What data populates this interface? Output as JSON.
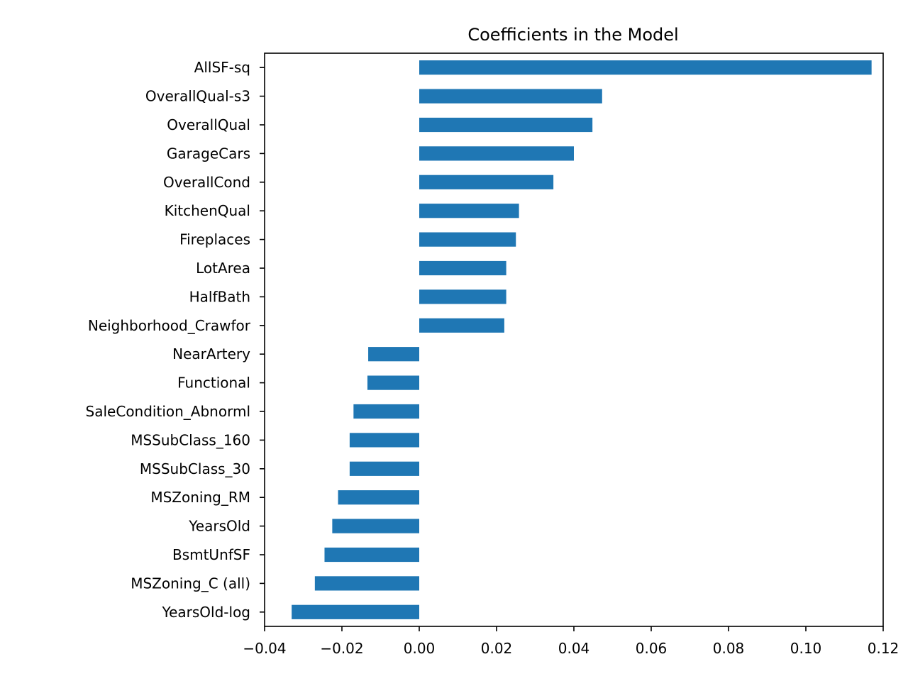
{
  "chart_data": {
    "type": "bar",
    "orientation": "horizontal",
    "title": "Coefficients in the Model",
    "xlabel": "",
    "ylabel": "",
    "xlim": [
      -0.04,
      0.12
    ],
    "xticks": [
      -0.04,
      -0.02,
      0.0,
      0.02,
      0.04,
      0.06,
      0.08,
      0.1,
      0.12
    ],
    "xtick_labels": [
      "−0.04",
      "−0.02",
      "0.00",
      "0.02",
      "0.04",
      "0.06",
      "0.08",
      "0.10",
      "0.12"
    ],
    "grid": false,
    "bar_color": "#1f77b4",
    "categories": [
      "AllSF-sq",
      "OverallQual-s3",
      "OverallQual",
      "GarageCars",
      "OverallCond",
      "KitchenQual",
      "Fireplaces",
      "LotArea",
      "HalfBath",
      "Neighborhood_Crawfor",
      "NearArtery",
      "Functional",
      "SaleCondition_Abnorml",
      "MSSubClass_160",
      "MSSubClass_30",
      "MSZoning_RM",
      "YearsOld",
      "BsmtUnfSF",
      "MSZoning_C (all)",
      "YearsOld-log"
    ],
    "values": [
      0.117,
      0.0473,
      0.0448,
      0.04,
      0.0347,
      0.0258,
      0.025,
      0.0225,
      0.0225,
      0.022,
      -0.0132,
      -0.0134,
      -0.017,
      -0.018,
      -0.018,
      -0.021,
      -0.0225,
      -0.0245,
      -0.027,
      -0.033
    ]
  }
}
